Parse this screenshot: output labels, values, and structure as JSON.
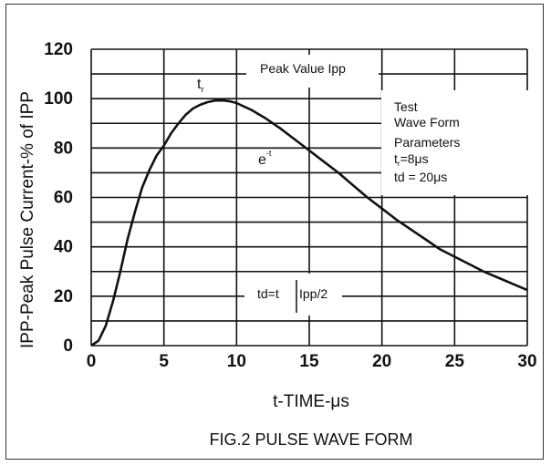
{
  "chart_data": {
    "type": "line",
    "title": "FIG.2 PULSE WAVE FORM",
    "xlabel": "t-TIME-μs",
    "ylabel": "IPP-Peak Pulse Current-% of IPP",
    "xlim": [
      0,
      30
    ],
    "ylim": [
      0,
      120
    ],
    "x_ticks": [
      "0",
      "5",
      "10",
      "15",
      "20",
      "25",
      "30"
    ],
    "y_ticks": [
      "0",
      "20",
      "40",
      "60",
      "80",
      "100",
      "120"
    ],
    "grid": true,
    "series": [
      {
        "x": [
          0,
          0.5,
          1,
          1.5,
          2,
          2.5,
          3,
          3.5,
          4,
          4.5,
          5,
          5.5,
          6,
          6.5,
          7,
          7.5,
          8,
          8.5,
          9,
          9.5,
          10,
          11,
          12,
          13,
          14,
          15,
          16,
          17,
          18,
          19,
          20,
          21,
          22,
          23,
          24,
          25,
          26,
          27,
          28,
          29,
          30
        ],
        "y": [
          0,
          2,
          8,
          18,
          30,
          43,
          54,
          64,
          71,
          77,
          81,
          86,
          90,
          93.5,
          96,
          97.5,
          98.6,
          99.2,
          99.3,
          99,
          98.2,
          95.5,
          92,
          88,
          83.5,
          79,
          74.5,
          70,
          65,
          60,
          55.5,
          51,
          47,
          43,
          39,
          36,
          33,
          30,
          27.5,
          25,
          22.5
        ]
      }
    ],
    "annotations": {
      "peak_value": "Peak Value Ipp",
      "tr_main": "t",
      "tr_sub": "r",
      "exp_main": "e",
      "exp_sup": "-t",
      "params_line1": "Test",
      "params_line2": "Wave Form",
      "params_line3": "Parameters",
      "params_tr_main": "t",
      "params_tr_sub": "r",
      "params_tr_value": "=8μs",
      "params_td": "td = 20μs",
      "td_left": "td=t",
      "td_right": "Ipp/2"
    }
  }
}
